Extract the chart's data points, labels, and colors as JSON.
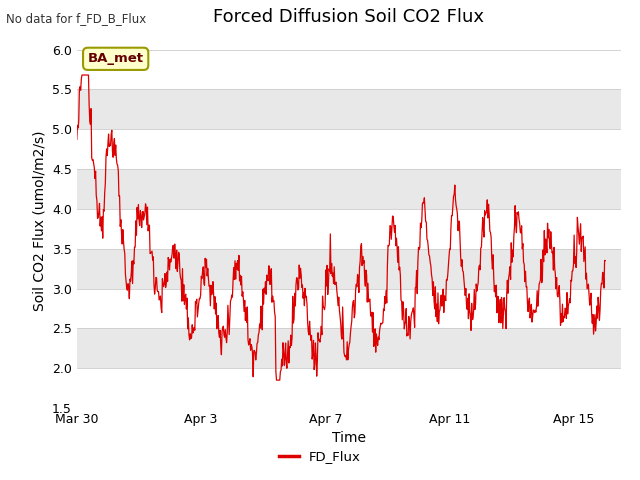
{
  "title": "Forced Diffusion Soil CO2 Flux",
  "top_left_text": "No data for f_FD_B_Flux",
  "ylabel": "Soil CO2 Flux (umol/m2/s)",
  "xlabel": "Time",
  "legend_label": "FD_Flux",
  "line_color": "#dd0000",
  "ylim": [
    1.5,
    6.2
  ],
  "yticks": [
    1.5,
    2.0,
    2.5,
    3.0,
    3.5,
    4.0,
    4.5,
    5.0,
    5.5,
    6.0
  ],
  "band_colors": [
    "#ffffff",
    "#e8e8e8"
  ],
  "fig_bg": "#ffffff",
  "plot_bg": "#ffffff",
  "box_label": "BA_met",
  "box_bg": "#ffffcc",
  "box_edge": "#999900",
  "title_fontsize": 13,
  "label_fontsize": 10,
  "tick_fontsize": 9,
  "x_tick_positions": [
    0,
    4,
    8,
    12,
    16
  ],
  "x_tick_labels": [
    "Mar 30",
    "Apr 3",
    "Apr 7",
    "Apr 11",
    "Apr 15"
  ],
  "xlim": [
    0,
    17.5
  ]
}
